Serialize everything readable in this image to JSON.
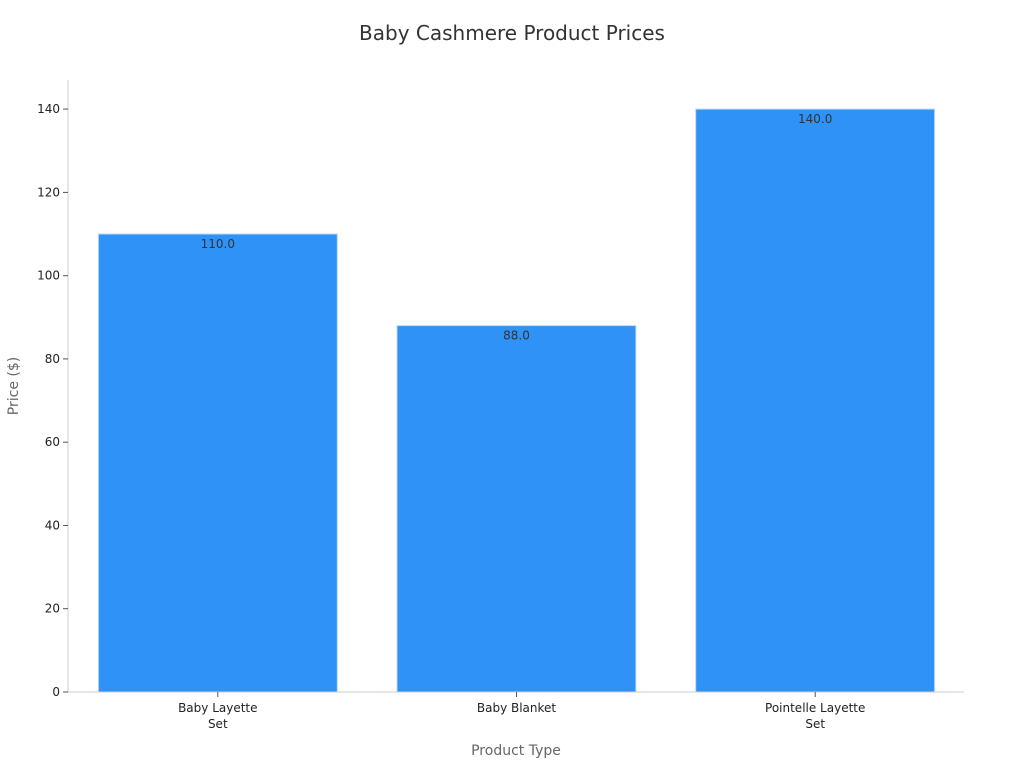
{
  "chart_data": {
    "type": "bar",
    "title": "Baby Cashmere Product Prices",
    "xlabel": "Product Type",
    "ylabel": "Price ($)",
    "categories": [
      [
        "Baby Layette",
        "Set"
      ],
      [
        "Baby Blanket"
      ],
      [
        "Pointelle Layette",
        "Set"
      ]
    ],
    "values": [
      110.0,
      88.0,
      140.0
    ],
    "value_labels": [
      "110.0",
      "88.0",
      "140.0"
    ],
    "ylim": [
      0,
      147
    ],
    "yticks": [
      0,
      20,
      40,
      60,
      80,
      100,
      120,
      140
    ],
    "grid": false,
    "legend": "none",
    "colors": {
      "bar": "#2F92F7",
      "bar_edge": "#bcd9f5"
    }
  }
}
